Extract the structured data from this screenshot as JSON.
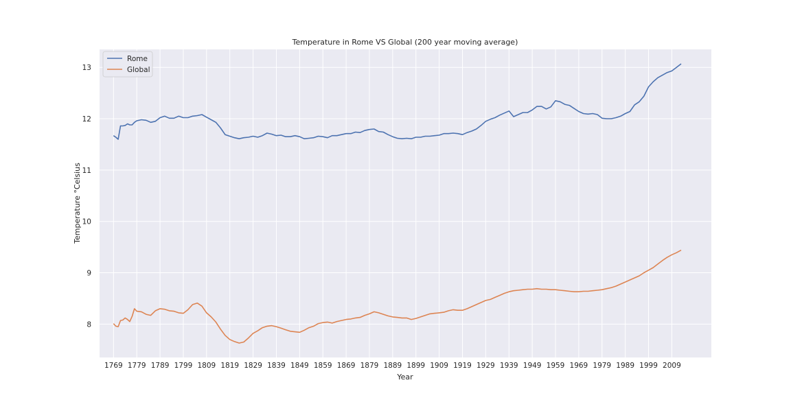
{
  "colors": {
    "background": "#eaeaf2",
    "grid": "#ffffff",
    "rome": "#4c72b0",
    "global": "#dd8452",
    "text": "#262626"
  },
  "chart_data": {
    "type": "line",
    "title": "Temperature in Rome VS Global (200 year moving average)",
    "xlabel": "Year",
    "ylabel": "Temperature °Celsius",
    "xlim": [
      1763,
      2026
    ],
    "ylim": [
      7.35,
      13.35
    ],
    "grid": true,
    "legend_position": "top-left",
    "x_ticks": [
      "1769",
      "1779",
      "1789",
      "1799",
      "1809",
      "1819",
      "1829",
      "1839",
      "1849",
      "1859",
      "1869",
      "1879",
      "1889",
      "1899",
      "1909",
      "1919",
      "1929",
      "1939",
      "1949",
      "1959",
      "1969",
      "1979",
      "1989",
      "1999",
      "2009"
    ],
    "y_ticks": [
      8,
      9,
      10,
      11,
      12,
      13
    ],
    "series": [
      {
        "name": "Rome",
        "color": "#4c72b0",
        "x": [
          1769,
          1770,
          1771,
          1772,
          1773,
          1774,
          1775,
          1776,
          1777,
          1778,
          1779,
          1781,
          1783,
          1785,
          1787,
          1789,
          1791,
          1793,
          1795,
          1797,
          1799,
          1801,
          1803,
          1805,
          1807,
          1809,
          1811,
          1813,
          1815,
          1817,
          1819,
          1821,
          1823,
          1825,
          1827,
          1829,
          1831,
          1833,
          1835,
          1837,
          1839,
          1841,
          1843,
          1845,
          1847,
          1849,
          1851,
          1853,
          1855,
          1857,
          1859,
          1861,
          1863,
          1865,
          1867,
          1869,
          1871,
          1873,
          1875,
          1877,
          1879,
          1881,
          1883,
          1885,
          1887,
          1889,
          1891,
          1893,
          1895,
          1897,
          1899,
          1901,
          1903,
          1905,
          1907,
          1909,
          1911,
          1913,
          1915,
          1917,
          1919,
          1921,
          1923,
          1925,
          1927,
          1929,
          1931,
          1933,
          1935,
          1937,
          1939,
          1941,
          1943,
          1945,
          1947,
          1949,
          1951,
          1953,
          1955,
          1957,
          1959,
          1961,
          1963,
          1965,
          1967,
          1969,
          1971,
          1973,
          1975,
          1977,
          1979,
          1981,
          1983,
          1985,
          1987,
          1989,
          1991,
          1993,
          1995,
          1997,
          1999,
          2001,
          2003,
          2005,
          2007,
          2009,
          2011,
          2013
        ],
        "values": [
          11.67,
          11.64,
          11.6,
          11.86,
          11.86,
          11.87,
          11.9,
          11.88,
          11.88,
          11.93,
          11.96,
          11.98,
          11.97,
          11.93,
          11.95,
          12.02,
          12.05,
          12.01,
          12.01,
          12.05,
          12.02,
          12.02,
          12.05,
          12.06,
          12.08,
          12.03,
          11.98,
          11.93,
          11.82,
          11.69,
          11.66,
          11.63,
          11.61,
          11.63,
          11.64,
          11.66,
          11.64,
          11.67,
          11.72,
          11.7,
          11.67,
          11.68,
          11.65,
          11.65,
          11.67,
          11.65,
          11.61,
          11.62,
          11.63,
          11.66,
          11.65,
          11.63,
          11.67,
          11.67,
          11.69,
          11.71,
          11.71,
          11.74,
          11.73,
          11.77,
          11.79,
          11.8,
          11.75,
          11.74,
          11.69,
          11.65,
          11.62,
          11.61,
          11.62,
          11.61,
          11.64,
          11.64,
          11.66,
          11.66,
          11.67,
          11.68,
          11.71,
          11.71,
          11.72,
          11.71,
          11.69,
          11.73,
          11.76,
          11.8,
          11.87,
          11.95,
          11.99,
          12.02,
          12.07,
          12.11,
          12.15,
          12.04,
          12.08,
          12.12,
          12.12,
          12.17,
          12.24,
          12.24,
          12.19,
          12.23,
          12.35,
          12.33,
          12.28,
          12.26,
          12.2,
          12.14,
          12.1,
          12.09,
          12.1,
          12.08,
          12.01,
          12.0,
          12.0,
          12.02,
          12.05,
          12.1,
          12.14,
          12.27,
          12.33,
          12.44,
          12.62,
          12.72,
          12.8,
          12.85,
          12.9,
          12.93,
          13.0,
          13.07
        ]
      },
      {
        "name": "Global",
        "color": "#dd8452",
        "x": [
          1769,
          1770,
          1771,
          1772,
          1773,
          1774,
          1775,
          1776,
          1777,
          1778,
          1779,
          1781,
          1783,
          1785,
          1787,
          1789,
          1791,
          1793,
          1795,
          1797,
          1799,
          1801,
          1803,
          1805,
          1807,
          1809,
          1811,
          1813,
          1815,
          1817,
          1819,
          1821,
          1823,
          1825,
          1827,
          1829,
          1831,
          1833,
          1835,
          1837,
          1839,
          1841,
          1843,
          1845,
          1847,
          1849,
          1851,
          1853,
          1855,
          1857,
          1859,
          1861,
          1863,
          1865,
          1867,
          1869,
          1871,
          1873,
          1875,
          1877,
          1879,
          1881,
          1883,
          1885,
          1887,
          1889,
          1891,
          1893,
          1895,
          1897,
          1899,
          1901,
          1903,
          1905,
          1907,
          1909,
          1911,
          1913,
          1915,
          1917,
          1919,
          1921,
          1923,
          1925,
          1927,
          1929,
          1931,
          1933,
          1935,
          1937,
          1939,
          1941,
          1943,
          1945,
          1947,
          1949,
          1951,
          1953,
          1955,
          1957,
          1959,
          1961,
          1963,
          1965,
          1967,
          1969,
          1971,
          1973,
          1975,
          1977,
          1979,
          1981,
          1983,
          1985,
          1987,
          1989,
          1991,
          1993,
          1995,
          1997,
          1999,
          2001,
          2003,
          2005,
          2007,
          2009,
          2011,
          2013
        ],
        "values": [
          8.01,
          7.96,
          7.95,
          8.07,
          8.08,
          8.12,
          8.09,
          8.05,
          8.15,
          8.3,
          8.25,
          8.24,
          8.19,
          8.17,
          8.26,
          8.3,
          8.29,
          8.26,
          8.25,
          8.22,
          8.21,
          8.28,
          8.38,
          8.41,
          8.35,
          8.22,
          8.14,
          8.04,
          7.9,
          7.78,
          7.7,
          7.66,
          7.63,
          7.65,
          7.73,
          7.82,
          7.87,
          7.93,
          7.96,
          7.97,
          7.95,
          7.92,
          7.89,
          7.86,
          7.85,
          7.84,
          7.88,
          7.93,
          7.96,
          8.01,
          8.03,
          8.04,
          8.02,
          8.05,
          8.07,
          8.09,
          8.1,
          8.12,
          8.13,
          8.17,
          8.2,
          8.24,
          8.22,
          8.19,
          8.16,
          8.14,
          8.13,
          8.12,
          8.12,
          8.09,
          8.11,
          8.14,
          8.17,
          8.2,
          8.21,
          8.22,
          8.23,
          8.26,
          8.28,
          8.27,
          8.27,
          8.3,
          8.34,
          8.38,
          8.42,
          8.46,
          8.48,
          8.52,
          8.56,
          8.6,
          8.63,
          8.65,
          8.66,
          8.67,
          8.68,
          8.68,
          8.69,
          8.68,
          8.68,
          8.67,
          8.67,
          8.66,
          8.65,
          8.64,
          8.63,
          8.63,
          8.64,
          8.64,
          8.65,
          8.66,
          8.67,
          8.69,
          8.71,
          8.74,
          8.78,
          8.82,
          8.86,
          8.9,
          8.94,
          9.0,
          9.05,
          9.1,
          9.17,
          9.24,
          9.3,
          9.35,
          9.39,
          9.44
        ]
      }
    ]
  }
}
